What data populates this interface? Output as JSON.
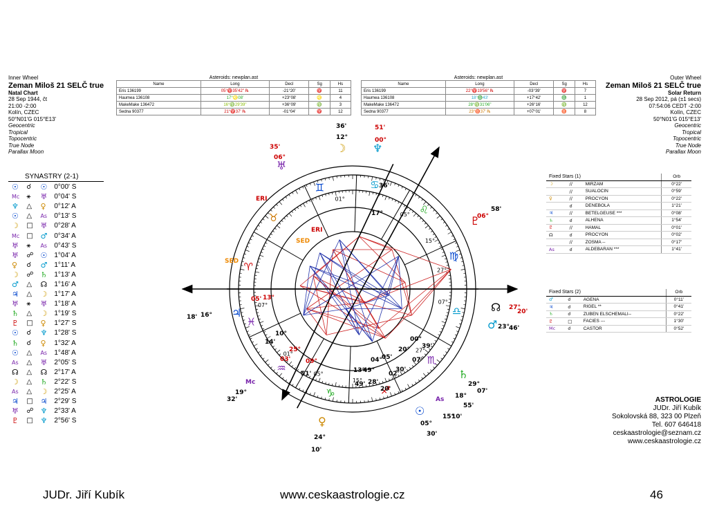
{
  "inner_wheel": {
    "label": "Inner Wheel",
    "name": "Zeman Miloš 21 SELČ true",
    "chart_type": "Natal Chart",
    "date": "28 Sep 1944, čt",
    "time": "21:00  -2:00",
    "place": "Kolín, CZEC",
    "coords": "50°N01'G 015°E13'",
    "options": [
      "Geocentric",
      "Tropical",
      "Topocentric",
      "True Node",
      "Parallax Moon"
    ]
  },
  "outer_wheel": {
    "label": "Outer Wheel",
    "name": "Zeman Miloš 21 SELČ true",
    "chart_type": "Solar Return",
    "date": "28 Sep 2012, pá  (±1 secs)",
    "time": "07:54:06  CEDT -2:00",
    "place": "Kolín, CZEC",
    "coords": "50°N01'G 015°E13'",
    "options": [
      "Geocentric",
      "Tropical",
      "Topocentric",
      "True Node",
      "Parallax Moon"
    ]
  },
  "asteroids_left": {
    "title": "Asteroids: newplan.ast",
    "headers": [
      "Name",
      "Long",
      "Decl",
      "Sg",
      "Hs"
    ],
    "rows": [
      {
        "name": "Eris 136199",
        "long": "05°♈35'42\" ℞",
        "decl": "-21°20'",
        "sg": "♈",
        "hs": "11",
        "color": "#d00000"
      },
      {
        "name": "Haumea 136108",
        "long": "17°♌08'",
        "decl": "+23°08'",
        "sg": "♌",
        "hs": "4",
        "color": "#22aa22"
      },
      {
        "name": "MakeMake 136472",
        "long": "16°♍29'39\"",
        "decl": "+36°09'",
        "sg": "♍",
        "hs": "3",
        "color": "#88bb00"
      },
      {
        "name": "Sedna 90377",
        "long": "21°♈37' ℞",
        "decl": "-01°04'",
        "sg": "♈",
        "hs": "12",
        "color": "#d00000"
      }
    ]
  },
  "asteroids_right": {
    "title": "Asteroids: newplan.ast",
    "headers": [
      "Name",
      "Long",
      "Decl",
      "Sg",
      "Hs"
    ],
    "rows": [
      {
        "name": "Eris 136199",
        "long": "22°♈19'56\" ℞",
        "decl": "-03°39'",
        "sg": "♈",
        "hs": "7",
        "color": "#d00000"
      },
      {
        "name": "Haumea 136108",
        "long": "18°♎43'",
        "decl": "+17°42'",
        "sg": "♎",
        "hs": "1",
        "color": "#22aacc"
      },
      {
        "name": "MakeMake 136472",
        "long": "28°♍31'06\"",
        "decl": "+26°16'",
        "sg": "♍",
        "hs": "12",
        "color": "#22aa22"
      },
      {
        "name": "Sedna 90377",
        "long": "23°♉37' ℞",
        "decl": "+07°01'",
        "sg": "♉",
        "hs": "8",
        "color": "#cc7700"
      }
    ]
  },
  "synastry": {
    "title": "SYNASTRY (2-1)",
    "rows": [
      {
        "p1": "☉",
        "c1": "#0044cc",
        "asp": "☌",
        "p2": "☉",
        "c2": "#0044cc",
        "orb": "0°00' S"
      },
      {
        "p1": "Mc",
        "c1": "#7722aa",
        "asp": "⚹",
        "p2": "♅",
        "c2": "#7722aa",
        "orb": "0°04' S"
      },
      {
        "p1": "♆",
        "c1": "#0099cc",
        "asp": "△",
        "p2": "♀",
        "c2": "#cc8800",
        "orb": "0°12' A"
      },
      {
        "p1": "☉",
        "c1": "#0044cc",
        "asp": "△",
        "p2": "As",
        "c2": "#7722aa",
        "orb": "0°13' S"
      },
      {
        "p1": "☽",
        "c1": "#cc9900",
        "asp": "□",
        "p2": "♅",
        "c2": "#7722aa",
        "orb": "0°28' A"
      },
      {
        "p1": "Mc",
        "c1": "#7722aa",
        "asp": "□",
        "p2": "♂",
        "c2": "#0099cc",
        "orb": "0°34' A"
      },
      {
        "p1": "♅",
        "c1": "#7722aa",
        "asp": "⚹",
        "p2": "As",
        "c2": "#7722aa",
        "orb": "0°43' S"
      },
      {
        "p1": "♅",
        "c1": "#7722aa",
        "asp": "☍",
        "p2": "☉",
        "c2": "#0044cc",
        "orb": "1°04' A"
      },
      {
        "p1": "♀",
        "c1": "#cc8800",
        "asp": "☌",
        "p2": "♂",
        "c2": "#0099cc",
        "orb": "1°11' A"
      },
      {
        "p1": "☽",
        "c1": "#cc9900",
        "asp": "☍",
        "p2": "♄",
        "c2": "#22aa22",
        "orb": "1°13' A"
      },
      {
        "p1": "♂",
        "c1": "#0099cc",
        "asp": "△",
        "p2": "☊",
        "c2": "#000000",
        "orb": "1°16' A"
      },
      {
        "p1": "♃",
        "c1": "#0044cc",
        "asp": "△",
        "p2": "☽",
        "c2": "#cc9900",
        "orb": "1°17' A"
      },
      {
        "p1": "♅",
        "c1": "#7722aa",
        "asp": "⚹",
        "p2": "♅",
        "c2": "#7722aa",
        "orb": "1°18' A"
      },
      {
        "p1": "♄",
        "c1": "#22aa22",
        "asp": "△",
        "p2": "☽",
        "c2": "#cc9900",
        "orb": "1°19' S"
      },
      {
        "p1": "♇",
        "c1": "#cc0000",
        "asp": "□",
        "p2": "♀",
        "c2": "#cc8800",
        "orb": "1°27' S"
      },
      {
        "p1": "☉",
        "c1": "#0044cc",
        "asp": "☌",
        "p2": "♆",
        "c2": "#0099cc",
        "orb": "1°28' S"
      },
      {
        "p1": "♄",
        "c1": "#22aa22",
        "asp": "☌",
        "p2": "♀",
        "c2": "#cc8800",
        "orb": "1°32' A"
      },
      {
        "p1": "☉",
        "c1": "#0044cc",
        "asp": "△",
        "p2": "As",
        "c2": "#7722aa",
        "orb": "1°48' A"
      },
      {
        "p1": "As",
        "c1": "#7722aa",
        "asp": "△",
        "p2": "♅",
        "c2": "#7722aa",
        "orb": "2°05' S"
      },
      {
        "p1": "☊",
        "c1": "#000000",
        "asp": "△",
        "p2": "☊",
        "c2": "#000000",
        "orb": "2°17' A"
      },
      {
        "p1": "☽",
        "c1": "#cc9900",
        "asp": "△",
        "p2": "♄",
        "c2": "#22aa22",
        "orb": "2°22' S"
      },
      {
        "p1": "As",
        "c1": "#7722aa",
        "asp": "△",
        "p2": "☽",
        "c2": "#cc9900",
        "orb": "2°25' A"
      },
      {
        "p1": "♃",
        "c1": "#0044cc",
        "asp": "□",
        "p2": "♃",
        "c2": "#0044cc",
        "orb": "2°29' S"
      },
      {
        "p1": "♅",
        "c1": "#7722aa",
        "asp": "☍",
        "p2": "♆",
        "c2": "#0099cc",
        "orb": "2°33' A"
      },
      {
        "p1": "♇",
        "c1": "#cc0000",
        "asp": "□",
        "p2": "♆",
        "c2": "#0099cc",
        "orb": "2°56' S"
      }
    ]
  },
  "fixed_stars_1": {
    "title": "Fixed Stars (1)",
    "orb_header": "Orb",
    "rows": [
      {
        "planet": "☽",
        "pc": "#cc9900",
        "asp": "//",
        "star": "MIRZAM",
        "orb": "0°22'"
      },
      {
        "planet": "",
        "pc": "#000000",
        "asp": "//",
        "star": "SUALOCIN",
        "orb": "0°59'"
      },
      {
        "planet": "♀",
        "pc": "#cc8800",
        "asp": "//",
        "star": "PROCYON",
        "orb": "0°22'"
      },
      {
        "planet": "",
        "pc": "#000000",
        "asp": "☌",
        "star": "DENEBOLA",
        "orb": "1°21'"
      },
      {
        "planet": "♃",
        "pc": "#0044cc",
        "asp": "//",
        "star": "BETELGEUSE ***",
        "orb": "0°08'"
      },
      {
        "planet": "♄",
        "pc": "#22aa22",
        "asp": "☌",
        "star": "ALHENA",
        "orb": "1°54'"
      },
      {
        "planet": "♇",
        "pc": "#cc0000",
        "asp": "//",
        "star": "HAMAL",
        "orb": "0°01'"
      },
      {
        "planet": "☊",
        "pc": "#000000",
        "asp": "☌",
        "star": "PROCYON",
        "orb": "0°02'"
      },
      {
        "planet": "",
        "pc": "#000000",
        "asp": "//",
        "star": "ZOSMA --",
        "orb": "0°17'"
      },
      {
        "planet": "As",
        "pc": "#7722aa",
        "asp": "☌",
        "star": "ALDEBARAN ***",
        "orb": "1°41'"
      }
    ]
  },
  "fixed_stars_2": {
    "title": "Fixed Stars (2)",
    "orb_header": "Orb",
    "rows": [
      {
        "planet": "♂",
        "pc": "#0099cc",
        "asp": "☌",
        "star": "AGENA",
        "orb": "0°11'"
      },
      {
        "planet": "♃",
        "pc": "#0044cc",
        "asp": "☌",
        "star": "RIGEL **",
        "orb": "0°41'"
      },
      {
        "planet": "♄",
        "pc": "#22aa22",
        "asp": "☌",
        "star": "ZUBEN ELSCHEMALI--",
        "orb": "0°22'"
      },
      {
        "planet": "♇",
        "pc": "#cc0000",
        "asp": "□",
        "star": "FACIES ---",
        "orb": "1°30'"
      },
      {
        "planet": "Mc",
        "pc": "#7722aa",
        "asp": "☌",
        "star": "CASTOR",
        "orb": "0°52'"
      }
    ]
  },
  "contact": {
    "title": "ASTROLOGIE",
    "name": "JUDr. Jiří Kubík",
    "address": "Sokolovská 88, 323 00 Plzeň",
    "phone": "Tel. 607 646418",
    "email": "ceskaastrologie@seznam.cz",
    "web": "www.ceskaastrologie.cz"
  },
  "footer": {
    "left": "JUDr. Jiří Kubík",
    "center": "www.ceskaastrologie.cz",
    "right": "46"
  },
  "wheel": {
    "signs": [
      {
        "g": "♈",
        "c": "#cc0000"
      },
      {
        "g": "♉",
        "c": "#cc7700"
      },
      {
        "g": "♊",
        "c": "#0044cc"
      },
      {
        "g": "♋",
        "c": "#0099cc"
      },
      {
        "g": "♌",
        "c": "#22aa22"
      },
      {
        "g": "♍",
        "c": "#0044cc"
      },
      {
        "g": "♎",
        "c": "#0099cc"
      },
      {
        "g": "♏",
        "c": "#7722aa"
      },
      {
        "g": "♐",
        "c": "#cc0000"
      },
      {
        "g": "♑",
        "c": "#22aa22"
      },
      {
        "g": "♒",
        "c": "#7722aa"
      },
      {
        "g": "♓",
        "c": "#7722aa"
      }
    ],
    "cusp_labels": [
      "01°",
      "05°",
      "15°",
      "27°",
      "07°",
      "27°",
      "15°",
      "05°",
      "01°",
      "07°"
    ],
    "outer_labels": [
      {
        "t": "36'",
        "c": "#000"
      },
      {
        "t": "12°",
        "c": "#000"
      },
      {
        "t": "☽",
        "c": "#cc9900"
      },
      {
        "t": "51'",
        "c": "#cc0000"
      },
      {
        "t": "00°",
        "c": "#cc0000"
      },
      {
        "t": "♆",
        "c": "#0099cc"
      },
      {
        "t": "35'",
        "c": "#cc0000"
      },
      {
        "t": "06°",
        "c": "#cc0000"
      },
      {
        "t": "♅",
        "c": "#7722aa"
      },
      {
        "t": "ERI",
        "c": "#cc0000"
      },
      {
        "t": "SED",
        "c": "#ee8800"
      },
      {
        "t": "06°",
        "c": "#cc0000"
      },
      {
        "t": "58'",
        "c": "#000"
      },
      {
        "t": "♇",
        "c": "#cc0000"
      },
      {
        "t": "☊",
        "c": "#000"
      },
      {
        "t": "27°",
        "c": "#cc0000"
      },
      {
        "t": "20'",
        "c": "#cc0000"
      },
      {
        "t": "♂",
        "c": "#0099cc"
      },
      {
        "t": "23°",
        "c": "#000"
      },
      {
        "t": "46'",
        "c": "#000"
      },
      {
        "t": "16°",
        "c": "#000"
      },
      {
        "t": "18'",
        "c": "#000"
      },
      {
        "t": "♃",
        "c": "#0044cc"
      },
      {
        "t": "19°",
        "c": "#000"
      },
      {
        "t": "32'",
        "c": "#000"
      },
      {
        "t": "Mc",
        "c": "#7722aa"
      },
      {
        "t": "24°",
        "c": "#000"
      },
      {
        "t": "10'",
        "c": "#000"
      },
      {
        "t": "♀",
        "c": "#cc8800"
      },
      {
        "t": "05°",
        "c": "#000"
      },
      {
        "t": "30'",
        "c": "#000"
      },
      {
        "t": "☉",
        "c": "#0044cc"
      },
      {
        "t": "15°",
        "c": "#000"
      },
      {
        "t": "10'",
        "c": "#000"
      },
      {
        "t": "As",
        "c": "#7722aa"
      },
      {
        "t": "18°",
        "c": "#000"
      },
      {
        "t": "55'",
        "c": "#000"
      },
      {
        "t": "29°",
        "c": "#000"
      },
      {
        "t": "07'",
        "c": "#000"
      },
      {
        "t": "♄",
        "c": "#22aa22"
      }
    ],
    "inner_labels": [
      {
        "t": "17°",
        "c": "#000"
      },
      {
        "t": "36'",
        "c": "#000"
      },
      {
        "t": "13°",
        "c": "#cc0000"
      },
      {
        "t": "05'",
        "c": "#cc0000"
      },
      {
        "t": "10°",
        "c": "#000"
      },
      {
        "t": "14'",
        "c": "#000"
      },
      {
        "t": "25°",
        "c": "#cc0000"
      },
      {
        "t": "03'",
        "c": "#cc0000"
      },
      {
        "t": "09°",
        "c": "#cc0000"
      },
      {
        "t": "51'",
        "c": "#000"
      },
      {
        "t": "13°",
        "c": "#000"
      },
      {
        "t": "49°",
        "c": "#000"
      },
      {
        "t": "04°",
        "c": "#000"
      },
      {
        "t": "05'",
        "c": "#000"
      },
      {
        "t": "20°",
        "c": "#000"
      },
      {
        "t": "00°",
        "c": "#000"
      },
      {
        "t": "39'",
        "c": "#000"
      },
      {
        "t": "07'",
        "c": "#000"
      },
      {
        "t": "02'",
        "c": "#000"
      },
      {
        "t": "30'",
        "c": "#000"
      },
      {
        "t": "49'",
        "c": "#000"
      },
      {
        "t": "28'",
        "c": "#000"
      },
      {
        "t": "20'",
        "c": "#000"
      },
      {
        "t": "ERI",
        "c": "#cc0000"
      },
      {
        "t": "SED",
        "c": "#ee8800"
      }
    ]
  }
}
